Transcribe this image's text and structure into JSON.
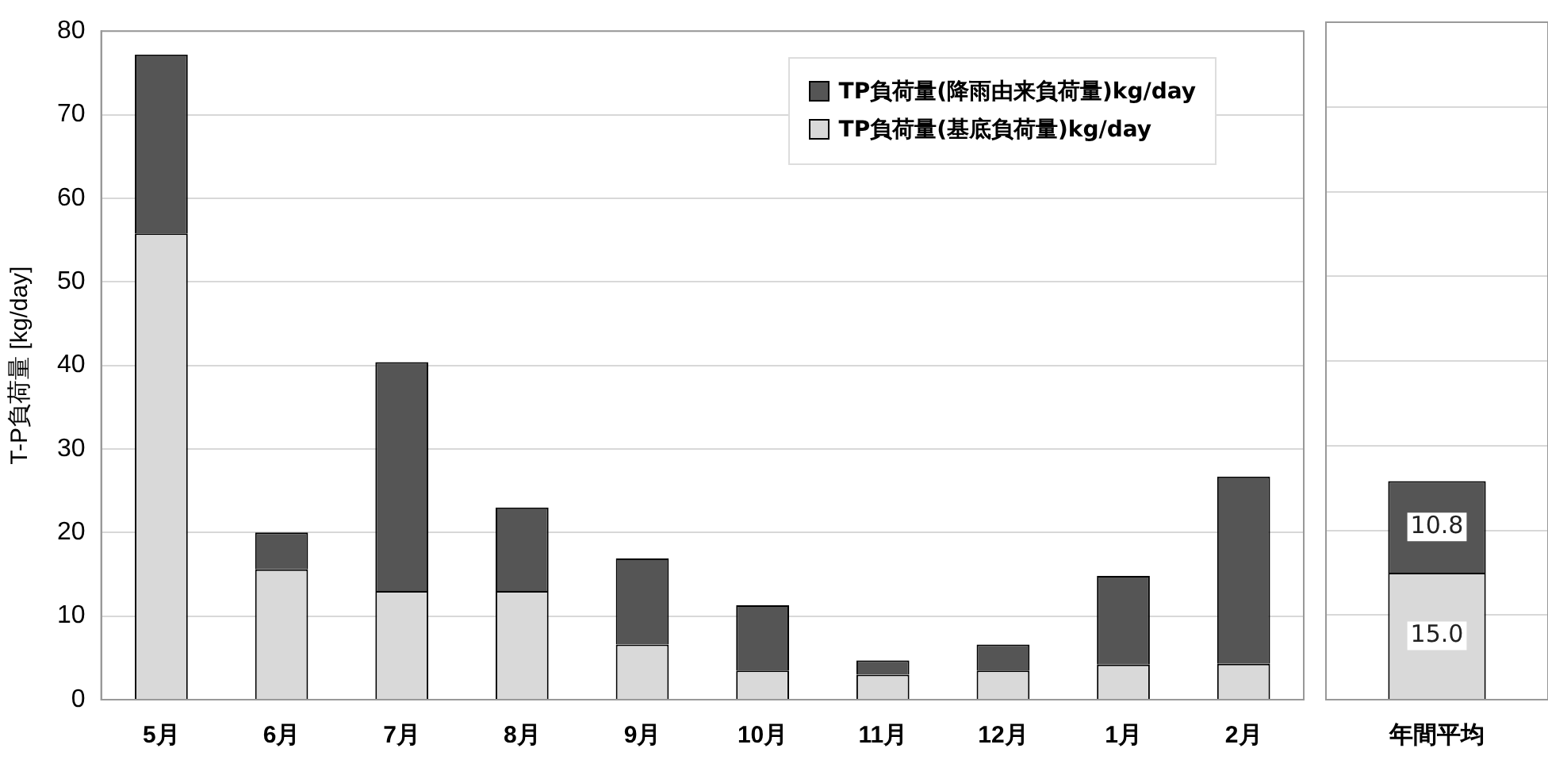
{
  "chart_data": [
    {
      "type": "bar",
      "ylabel": "T-P負荷量 [kg/day]",
      "categories": [
        "5月",
        "6月",
        "7月",
        "8月",
        "9月",
        "10月",
        "11月",
        "12月",
        "1月",
        "2月"
      ],
      "stacked": true,
      "ylim": [
        0,
        80
      ],
      "yticks": [
        0,
        10,
        20,
        30,
        40,
        50,
        60,
        70,
        80
      ],
      "grid": "y",
      "legend": "top right",
      "series": [
        {
          "name": "TP負荷量(基底負荷量)kg/day",
          "color": "#d9d9d9",
          "values": [
            55.8,
            15.6,
            13.0,
            13.0,
            6.6,
            3.5,
            3.0,
            3.5,
            4.2,
            4.3
          ]
        },
        {
          "name": "TP負荷量(降雨由来負荷量)kg/day",
          "color": "#555555",
          "values": [
            21.4,
            4.4,
            27.4,
            10.0,
            10.3,
            7.8,
            1.7,
            3.1,
            10.6,
            22.4
          ]
        }
      ]
    },
    {
      "type": "bar",
      "categories": [
        "年間平均"
      ],
      "stacked": true,
      "ylim": [
        0,
        80
      ],
      "yticks": [
        0,
        10,
        20,
        30,
        40,
        50,
        60,
        70,
        80
      ],
      "grid": "y",
      "tick_labels": "x",
      "series": [
        {
          "color": "#d9d9d9",
          "values": [
            15.0
          ],
          "value_labels": [
            "15.0"
          ]
        },
        {
          "color": "#555555",
          "values": [
            10.8
          ],
          "value_labels": [
            "10.8"
          ]
        }
      ]
    }
  ]
}
